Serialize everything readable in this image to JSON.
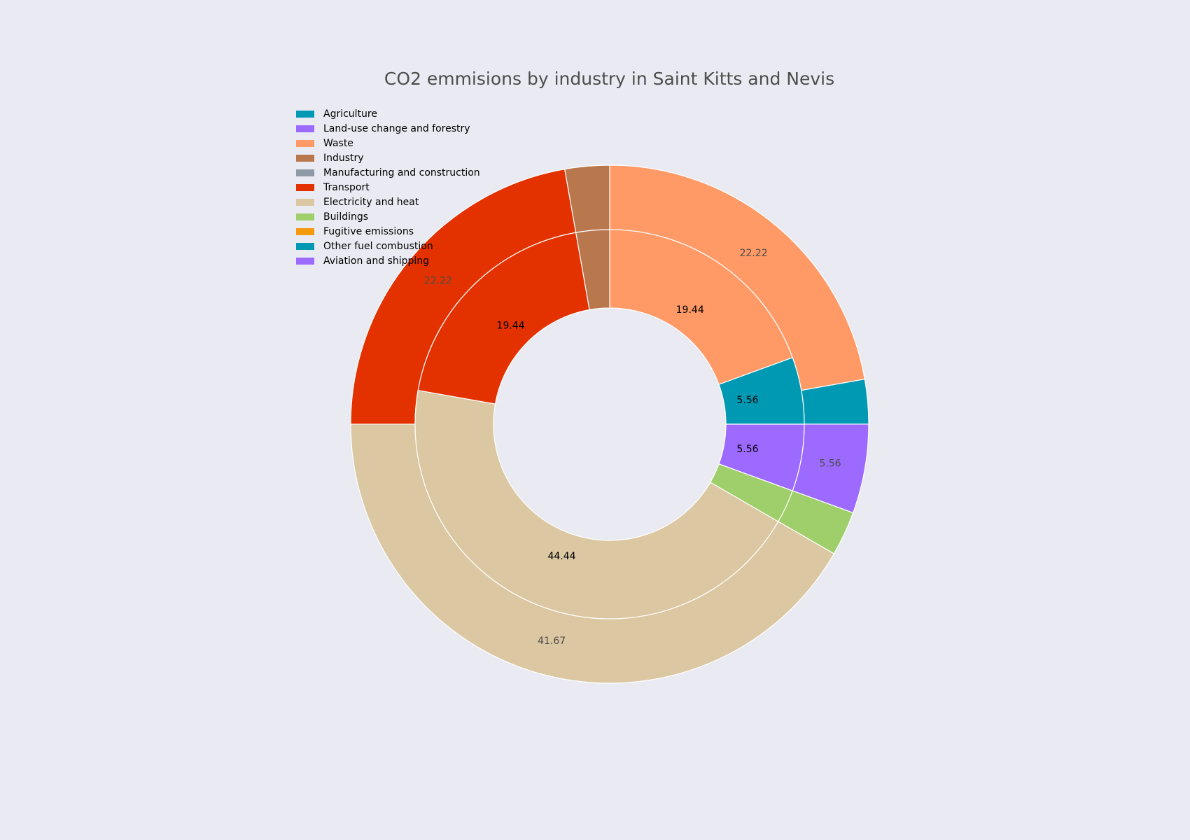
{
  "chart_data": {
    "type": "pie",
    "title": "CO2 emmisions by industry in Saint Kitts and Nevis",
    "legend_placement": "top-left",
    "legend": [
      {
        "name": "Agriculture",
        "color": "#0099b4"
      },
      {
        "name": "Land-use change and forestry",
        "color": "#9d6aff"
      },
      {
        "name": "Waste",
        "color": "#ff9966"
      },
      {
        "name": "Industry",
        "color": "#b9774e"
      },
      {
        "name": "Manufacturing and construction",
        "color": "#8d9aa5"
      },
      {
        "name": "Transport",
        "color": "#e33200"
      },
      {
        "name": "Electricity and heat",
        "color": "#dbc7a1"
      },
      {
        "name": "Buildings",
        "color": "#9ecf6a"
      },
      {
        "name": "Fugitive emissions",
        "color": "#f59a0c"
      },
      {
        "name": "Other fuel combustion",
        "color": "#0099b4"
      },
      {
        "name": "Aviation and shipping",
        "color": "#9d6aff"
      }
    ],
    "outer_ring": [
      {
        "category": "Waste",
        "value": 22.22,
        "label": "22.22",
        "color": "#ff9966"
      },
      {
        "category": "Agriculture",
        "value": 2.78,
        "label": "",
        "color": "#0099b4"
      },
      {
        "category": "Land-use change and forestry",
        "value": 5.56,
        "label": "5.56",
        "color": "#9d6aff"
      },
      {
        "category": "Buildings",
        "value": 2.78,
        "label": "",
        "color": "#9ecf6a"
      },
      {
        "category": "Electricity and heat",
        "value": 41.67,
        "label": "41.67",
        "color": "#dbc7a1"
      },
      {
        "category": "Transport",
        "value": 22.22,
        "label": "22.22",
        "color": "#e33200"
      },
      {
        "category": "Industry",
        "value": 2.78,
        "label": "",
        "color": "#b9774e"
      }
    ],
    "inner_ring": [
      {
        "category": "Waste",
        "value": 19.44,
        "label": "19.44",
        "color": "#ff9966"
      },
      {
        "category": "Agriculture",
        "value": 5.56,
        "label": "5.56",
        "color": "#0099b4"
      },
      {
        "category": "Land-use change and forestry",
        "value": 5.56,
        "label": "5.56",
        "color": "#9d6aff"
      },
      {
        "category": "Buildings",
        "value": 2.78,
        "label": "",
        "color": "#9ecf6a"
      },
      {
        "category": "Electricity and heat",
        "value": 44.44,
        "label": "44.44",
        "color": "#dbc7a1"
      },
      {
        "category": "Transport",
        "value": 19.44,
        "label": "19.44",
        "color": "#e33200"
      },
      {
        "category": "Industry",
        "value": 2.78,
        "label": "",
        "color": "#b9774e"
      }
    ]
  }
}
